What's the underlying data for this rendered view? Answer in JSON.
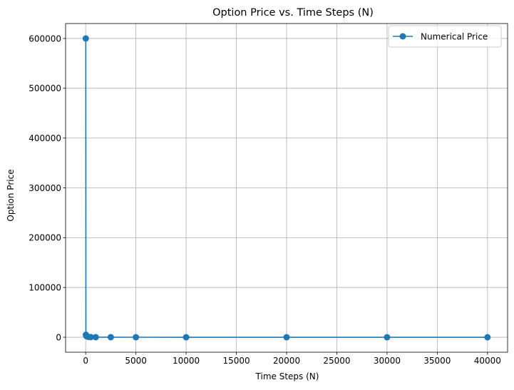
{
  "chart_data": {
    "type": "line",
    "title": "Option Price vs. Time Steps (N)",
    "xlabel": "Time Steps (N)",
    "ylabel": "Option Price",
    "xlim": [
      -2000,
      42000
    ],
    "ylim": [
      -30000,
      630000
    ],
    "xticks": [
      0,
      5000,
      10000,
      15000,
      20000,
      25000,
      30000,
      35000,
      40000
    ],
    "yticks": [
      0,
      100000,
      200000,
      300000,
      400000,
      500000,
      600000
    ],
    "grid": true,
    "legend_position": "top-right",
    "series": [
      {
        "name": "Numerical Price",
        "color": "#1f77b4",
        "marker": "circle",
        "points": [
          {
            "x": 10,
            "y": 600000
          },
          {
            "x": 25,
            "y": 5000
          },
          {
            "x": 50,
            "y": 3000
          },
          {
            "x": 100,
            "y": 2000
          },
          {
            "x": 250,
            "y": 800
          },
          {
            "x": 500,
            "y": 400
          },
          {
            "x": 1000,
            "y": 200
          },
          {
            "x": 2500,
            "y": 100
          },
          {
            "x": 5000,
            "y": 50
          },
          {
            "x": 10000,
            "y": 30
          },
          {
            "x": 20000,
            "y": 20
          },
          {
            "x": 30000,
            "y": 15
          },
          {
            "x": 40000,
            "y": 10
          }
        ]
      }
    ]
  }
}
